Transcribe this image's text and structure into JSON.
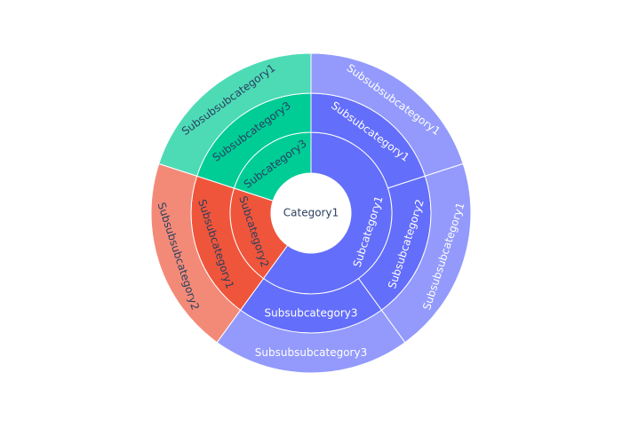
{
  "chart_data": {
    "type": "sunburst",
    "title": "",
    "grid": false,
    "legend": "none",
    "root": {
      "label": "Category1",
      "color": "#ffffff",
      "text_color": "#2a3f5f",
      "children": [
        {
          "label": "Subcategory1",
          "color": "#636efa",
          "text_color": "#ffffff",
          "children": [
            {
              "label": "Subsubcategory1",
              "color": "#636efa",
              "text_color": "#ffffff",
              "children": [
                {
                  "label": "Subsubsubcategory1",
                  "value": 2,
                  "color": "#939afc",
                  "text_color": "#ffffff"
                }
              ]
            },
            {
              "label": "Subsubcategory2",
              "color": "#636efa",
              "text_color": "#ffffff",
              "children": [
                {
                  "label": "Subsubsubcategory1",
                  "value": 2,
                  "color": "#939afc",
                  "text_color": "#ffffff"
                }
              ]
            },
            {
              "label": "Subsubcategory3",
              "color": "#636efa",
              "text_color": "#ffffff",
              "children": [
                {
                  "label": "Subsubsubcategory3",
                  "value": 2,
                  "color": "#939afc",
                  "text_color": "#ffffff"
                }
              ]
            }
          ]
        },
        {
          "label": "Subcategory2",
          "color": "#ef553b",
          "text_color": "#2a3f5f",
          "children": [
            {
              "label": "Subsubcategory1",
              "color": "#ef553b",
              "text_color": "#2a3f5f",
              "children": [
                {
                  "label": "Subsubsubcategory2",
                  "value": 2,
                  "color": "#f38a78",
                  "text_color": "#2a3f5f"
                }
              ]
            }
          ]
        },
        {
          "label": "Subcategory3",
          "color": "#00cc96",
          "text_color": "#2a3f5f",
          "children": [
            {
              "label": "Subsubcategory3",
              "color": "#00cc96",
              "text_color": "#2a3f5f",
              "children": [
                {
                  "label": "Subsubsubcategory1",
                  "value": 2,
                  "color": "#4ddbb5",
                  "text_color": "#2a3f5f"
                }
              ]
            }
          ]
        }
      ]
    }
  }
}
